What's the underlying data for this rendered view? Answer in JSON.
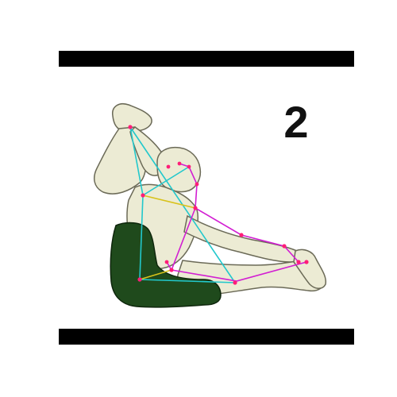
{
  "pose_label": "2",
  "colors": {
    "bars": "#000000",
    "skin": "#ecebd4",
    "skin_outline": "#6b6a57",
    "shorts": "#1f4a1c",
    "shorts_outline": "#0e260c",
    "keypoint": "#ff1e78",
    "skeleton_cyan": "#22c8cc",
    "skeleton_magenta": "#d21ed2",
    "skeleton_yellow": "#d8c21a"
  }
}
